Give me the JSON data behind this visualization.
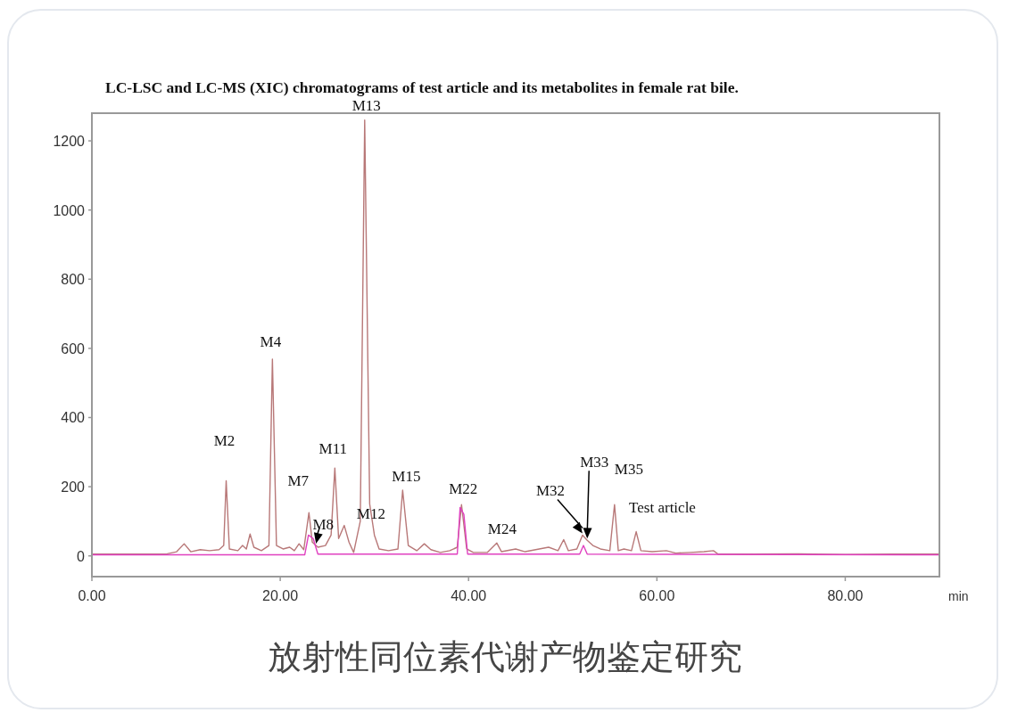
{
  "chart_data": {
    "type": "line",
    "title": "LC-LSC and LC-MS (XIC) chromatograms of test article and its metabolites in female rat bile.",
    "xlabel": "min",
    "xlim": [
      0,
      90
    ],
    "ylim": [
      -60,
      1280
    ],
    "xticks": [
      {
        "value": 0,
        "label": "0.00"
      },
      {
        "value": 20,
        "label": "20.00"
      },
      {
        "value": 40,
        "label": "40.00"
      },
      {
        "value": 60,
        "label": "60.00"
      },
      {
        "value": 80,
        "label": "80.00"
      }
    ],
    "yticks": [
      0,
      200,
      400,
      600,
      800,
      1000,
      1200
    ],
    "series": [
      {
        "color": "#b87878",
        "x": [
          0,
          5,
          8,
          9,
          9.8,
          10.5,
          11.5,
          12.5,
          13.5,
          14,
          14.26,
          14.6,
          15.5,
          16,
          16.4,
          16.8,
          17.2,
          18,
          18.8,
          19.17,
          19.6,
          20.3,
          21,
          21.5,
          22,
          22.5,
          23.05,
          23.4,
          24,
          24.8,
          25.4,
          25.8,
          26.2,
          26.8,
          27.3,
          27.8,
          28.5,
          28.97,
          29.5,
          30,
          30.5,
          31.5,
          32.5,
          33,
          33.6,
          34.5,
          35.3,
          36,
          37,
          38,
          38.8,
          39.25,
          39.8,
          40.5,
          42,
          43,
          43.5,
          45,
          46,
          47.5,
          48.5,
          49.5,
          50.1,
          50.6,
          51.5,
          52.1,
          52.6,
          53.2,
          54,
          55,
          55.5,
          55.9,
          56.5,
          57.3,
          57.8,
          58.3,
          59.5,
          61,
          62,
          63.5,
          65,
          66,
          66.5,
          70,
          75,
          80,
          85,
          90
        ],
        "values": [
          5,
          5,
          6,
          12,
          35,
          12,
          18,
          15,
          18,
          30,
          217,
          20,
          15,
          30,
          20,
          63,
          25,
          15,
          30,
          569,
          30,
          20,
          25,
          15,
          35,
          18,
          125,
          40,
          25,
          30,
          60,
          254,
          50,
          88,
          40,
          10,
          100,
          1260,
          150,
          60,
          20,
          15,
          20,
          190,
          30,
          15,
          35,
          18,
          10,
          15,
          25,
          148,
          20,
          10,
          10,
          37,
          12,
          20,
          12,
          20,
          25,
          15,
          47,
          15,
          20,
          60,
          45,
          30,
          20,
          15,
          148,
          15,
          20,
          15,
          70,
          15,
          12,
          15,
          8,
          10,
          12,
          15,
          5,
          5,
          6,
          4,
          5,
          5
        ]
      },
      {
        "color": "#e040c0",
        "x": [
          0,
          22.6,
          23,
          23.5,
          24,
          38.8,
          39.1,
          39.5,
          39.9,
          51.8,
          52.2,
          52.6,
          90
        ],
        "values": [
          3,
          3,
          60,
          50,
          5,
          5,
          140,
          120,
          5,
          5,
          30,
          5,
          3
        ]
      }
    ],
    "annotations": [
      {
        "text": "M2",
        "x": 14.26,
        "y": 217
      },
      {
        "text": "M4",
        "x": 19.17,
        "y": 569
      },
      {
        "text": "M7",
        "x": 23.05,
        "y": 125
      },
      {
        "text": "M8",
        "x": 23.8,
        "y": 30
      },
      {
        "text": "M11",
        "x": 25.8,
        "y": 254
      },
      {
        "text": "M12",
        "x": 26.8,
        "y": 88
      },
      {
        "text": "M13",
        "x": 28.97,
        "y": 1260
      },
      {
        "text": "M15",
        "x": 33,
        "y": 190
      },
      {
        "text": "M22",
        "x": 39.25,
        "y": 148
      },
      {
        "text": "M24",
        "x": 43,
        "y": 37
      },
      {
        "text": "M32",
        "x": 52.1,
        "y": 60
      },
      {
        "text": "M33",
        "x": 52.6,
        "y": 45
      },
      {
        "text": "M35",
        "x": 55.5,
        "y": 148
      },
      {
        "text": "Test article",
        "x": 57.8,
        "y": 70
      },
      "放射性同位素代谢产物鉴定研究"
    ]
  }
}
